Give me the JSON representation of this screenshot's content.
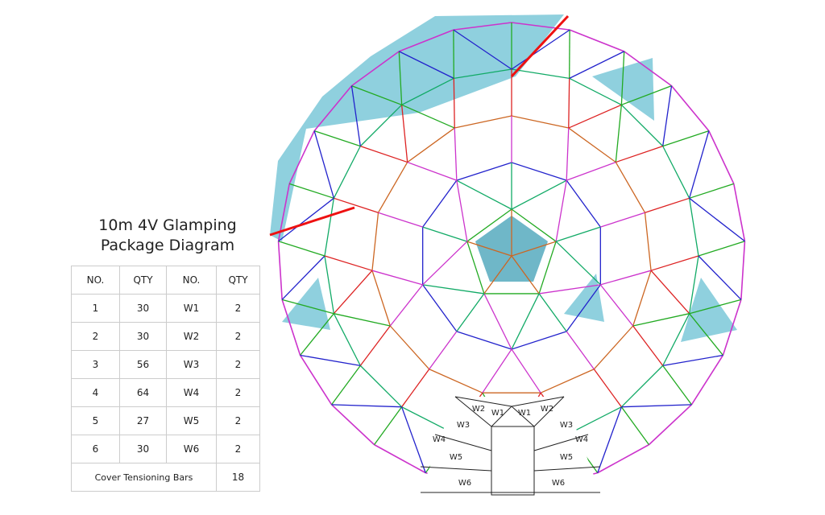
{
  "title_lines": [
    "10m 4V Glamping",
    "Package Diagram"
  ],
  "table": {
    "header": [
      "NO.",
      "QTY",
      "NO.",
      "QTY"
    ],
    "rows": [
      [
        "1",
        30,
        "W1",
        2
      ],
      [
        "2",
        30,
        "W2",
        2
      ],
      [
        "3",
        56,
        "W3",
        2
      ],
      [
        "4",
        64,
        "W4",
        2
      ],
      [
        "5",
        27,
        "W5",
        2
      ],
      [
        "6",
        30,
        "W6",
        2
      ]
    ],
    "footer": [
      "Cover Tensioning Bars",
      18
    ]
  },
  "door_labels": [
    "W1",
    "W2",
    "W3",
    "W4",
    "W5",
    "W6"
  ]
}
